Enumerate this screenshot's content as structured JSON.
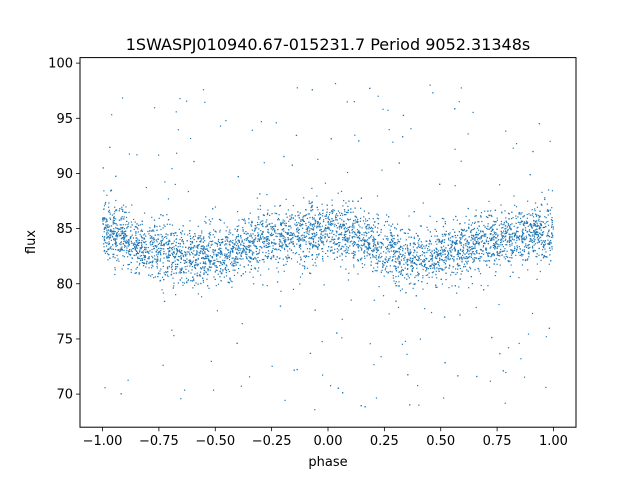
{
  "chart_data": {
    "type": "scatter",
    "title": "1SWASPJ010940.67-015231.7 Period 9052.31348s",
    "xlabel": "phase",
    "ylabel": "flux",
    "xlim": [
      -1.1,
      1.1
    ],
    "ylim": [
      67.0,
      100.5
    ],
    "xticks": [
      {
        "value": -1.0,
        "label": "−1.00"
      },
      {
        "value": -0.75,
        "label": "−0.75"
      },
      {
        "value": -0.5,
        "label": "−0.50"
      },
      {
        "value": -0.25,
        "label": "−0.25"
      },
      {
        "value": 0.0,
        "label": "0.00"
      },
      {
        "value": 0.25,
        "label": "0.25"
      },
      {
        "value": 0.5,
        "label": "0.50"
      },
      {
        "value": 0.75,
        "label": "0.75"
      },
      {
        "value": 1.0,
        "label": "1.00"
      }
    ],
    "yticks": [
      {
        "value": 70,
        "label": "70"
      },
      {
        "value": 75,
        "label": "75"
      },
      {
        "value": 80,
        "label": "80"
      },
      {
        "value": 85,
        "label": "85"
      },
      {
        "value": 90,
        "label": "90"
      },
      {
        "value": 95,
        "label": "95"
      },
      {
        "value": 100,
        "label": "100"
      }
    ],
    "grid": false,
    "point_color": "#1f77b4",
    "phase_curve": {
      "x": [
        -1.0,
        -0.75,
        -0.6,
        -0.5,
        -0.25,
        0.0,
        0.15,
        0.25,
        0.4,
        0.5,
        0.75,
        1.0
      ],
      "y": [
        84.8,
        83.0,
        82.4,
        82.5,
        84.0,
        84.8,
        84.2,
        83.0,
        82.3,
        82.6,
        84.0,
        84.8
      ]
    },
    "scatter_sigma": 1.3,
    "outlier_range": [
      68.5,
      98.5
    ]
  }
}
